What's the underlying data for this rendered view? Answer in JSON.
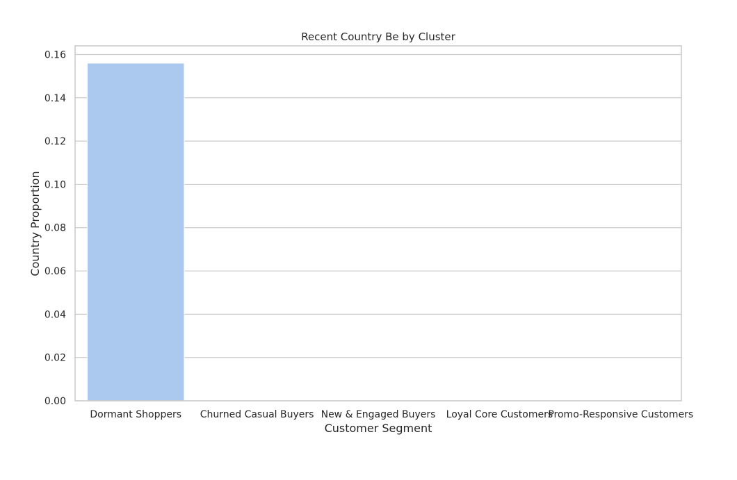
{
  "chart_data": {
    "type": "bar",
    "title": "Recent Country Be by Cluster",
    "xlabel": "Customer Segment",
    "ylabel": "Country Proportion",
    "categories": [
      "Dormant Shoppers",
      "Churned Casual Buyers",
      "New & Engaged Buyers",
      "Loyal Core Customers",
      "Promo-Responsive Customers"
    ],
    "values": [
      0.156,
      0,
      0,
      0,
      0
    ],
    "ylim": [
      0,
      0.164
    ],
    "yticks": [
      "0.00",
      "0.02",
      "0.04",
      "0.06",
      "0.08",
      "0.10",
      "0.12",
      "0.14",
      "0.16"
    ],
    "grid": "horizontal",
    "bar_color": "#abc9ef"
  }
}
